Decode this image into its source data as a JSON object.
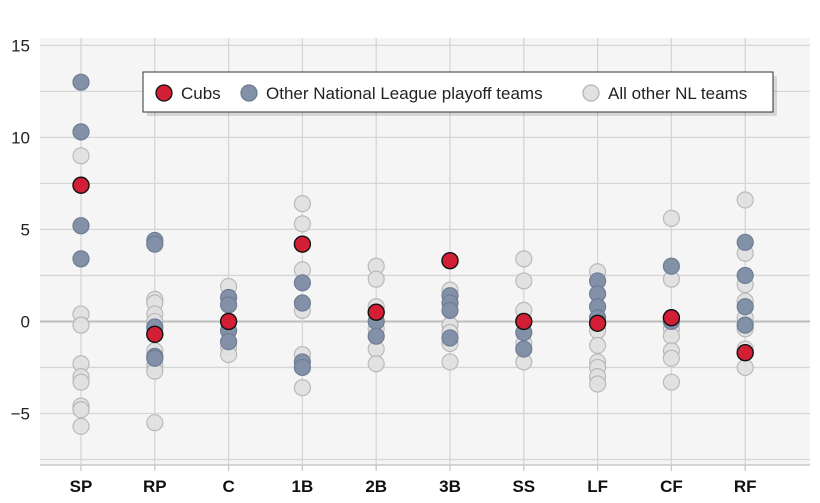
{
  "chart_data": {
    "type": "scatter",
    "title": "",
    "xlabel": "",
    "ylabel": "",
    "categories": [
      "SP",
      "RP",
      "C",
      "1B",
      "2B",
      "3B",
      "SS",
      "LF",
      "CF",
      "RF"
    ],
    "ylim": [
      -7.8,
      15.4
    ],
    "yticks": [
      -5,
      0,
      5,
      10,
      15
    ],
    "ytick_labels": [
      "−5",
      "0",
      "5",
      "10",
      "15"
    ],
    "grid": {
      "horizontal_step": 2.5,
      "vertical": true
    },
    "legend_placement": "top-right",
    "series": [
      {
        "name": "All other NL teams",
        "color": "#e1e1e1",
        "stroke": "#b5b5b5",
        "values": {
          "SP": [
            9.0,
            0.4,
            -0.2,
            -2.3,
            -3.0,
            -3.3,
            -4.6,
            -4.8,
            -5.7
          ],
          "RP": [
            1.2,
            1.0,
            0.4,
            0.0,
            -0.4,
            -1.6,
            -2.4,
            -2.7,
            -5.5
          ],
          "C": [
            1.9,
            -1.4,
            -1.8
          ],
          "1B": [
            6.4,
            5.3,
            2.8,
            0.6,
            -1.8,
            -3.6
          ],
          "2B": [
            3.0,
            2.3,
            0.8,
            -0.4,
            -1.5,
            -2.3
          ],
          "3B": [
            1.7,
            -0.2,
            -0.6,
            -1.2,
            -2.2
          ],
          "SS": [
            3.4,
            2.2,
            0.6,
            -1.2,
            -2.2
          ],
          "LF": [
            2.7,
            -0.5,
            -1.3,
            -2.2,
            -2.5,
            -3.0,
            -3.4
          ],
          "CF": [
            5.6,
            2.3,
            -0.4,
            -0.8,
            -1.6,
            -2.0,
            -3.3
          ],
          "RF": [
            6.6,
            3.7,
            2.0,
            1.1,
            0.2,
            -0.4,
            -1.5,
            -2.5
          ]
        }
      },
      {
        "name": "Other National League playoff teams",
        "color": "#8391a8",
        "stroke": "#6f7d94",
        "values": {
          "SP": [
            13.0,
            10.3,
            5.2,
            3.4
          ],
          "RP": [
            4.4,
            4.2,
            -0.3,
            -1.9,
            -2.0
          ],
          "C": [
            1.3,
            0.9,
            -0.5,
            -1.1
          ],
          "1B": [
            2.1,
            1.0,
            -2.2,
            -2.5
          ],
          "2B": [
            0.0,
            -0.8
          ],
          "3B": [
            1.4,
            1.0,
            0.6,
            -0.9
          ],
          "SS": [
            -0.6,
            -1.5
          ],
          "LF": [
            2.2,
            1.5,
            0.8,
            0.2
          ],
          "CF": [
            3.0,
            0.0
          ],
          "RF": [
            4.3,
            2.5,
            0.8,
            -0.2
          ]
        }
      },
      {
        "name": "Cubs",
        "color": "#d21f35",
        "stroke": "#111111",
        "values": {
          "SP": [
            7.4
          ],
          "RP": [
            -0.7
          ],
          "C": [
            0.0
          ],
          "1B": [
            4.2
          ],
          "2B": [
            0.5
          ],
          "3B": [
            3.3
          ],
          "SS": [
            0.0
          ],
          "LF": [
            -0.1
          ],
          "CF": [
            0.2
          ],
          "RF": [
            -1.7
          ]
        }
      }
    ],
    "legend": [
      {
        "label": "Cubs",
        "color": "#d21f35",
        "stroke": "#111111"
      },
      {
        "label": "Other National League playoff teams",
        "color": "#8391a8",
        "stroke": "#6f7d94"
      },
      {
        "label": "All other NL teams",
        "color": "#e1e1e1",
        "stroke": "#b5b5b5"
      }
    ]
  }
}
